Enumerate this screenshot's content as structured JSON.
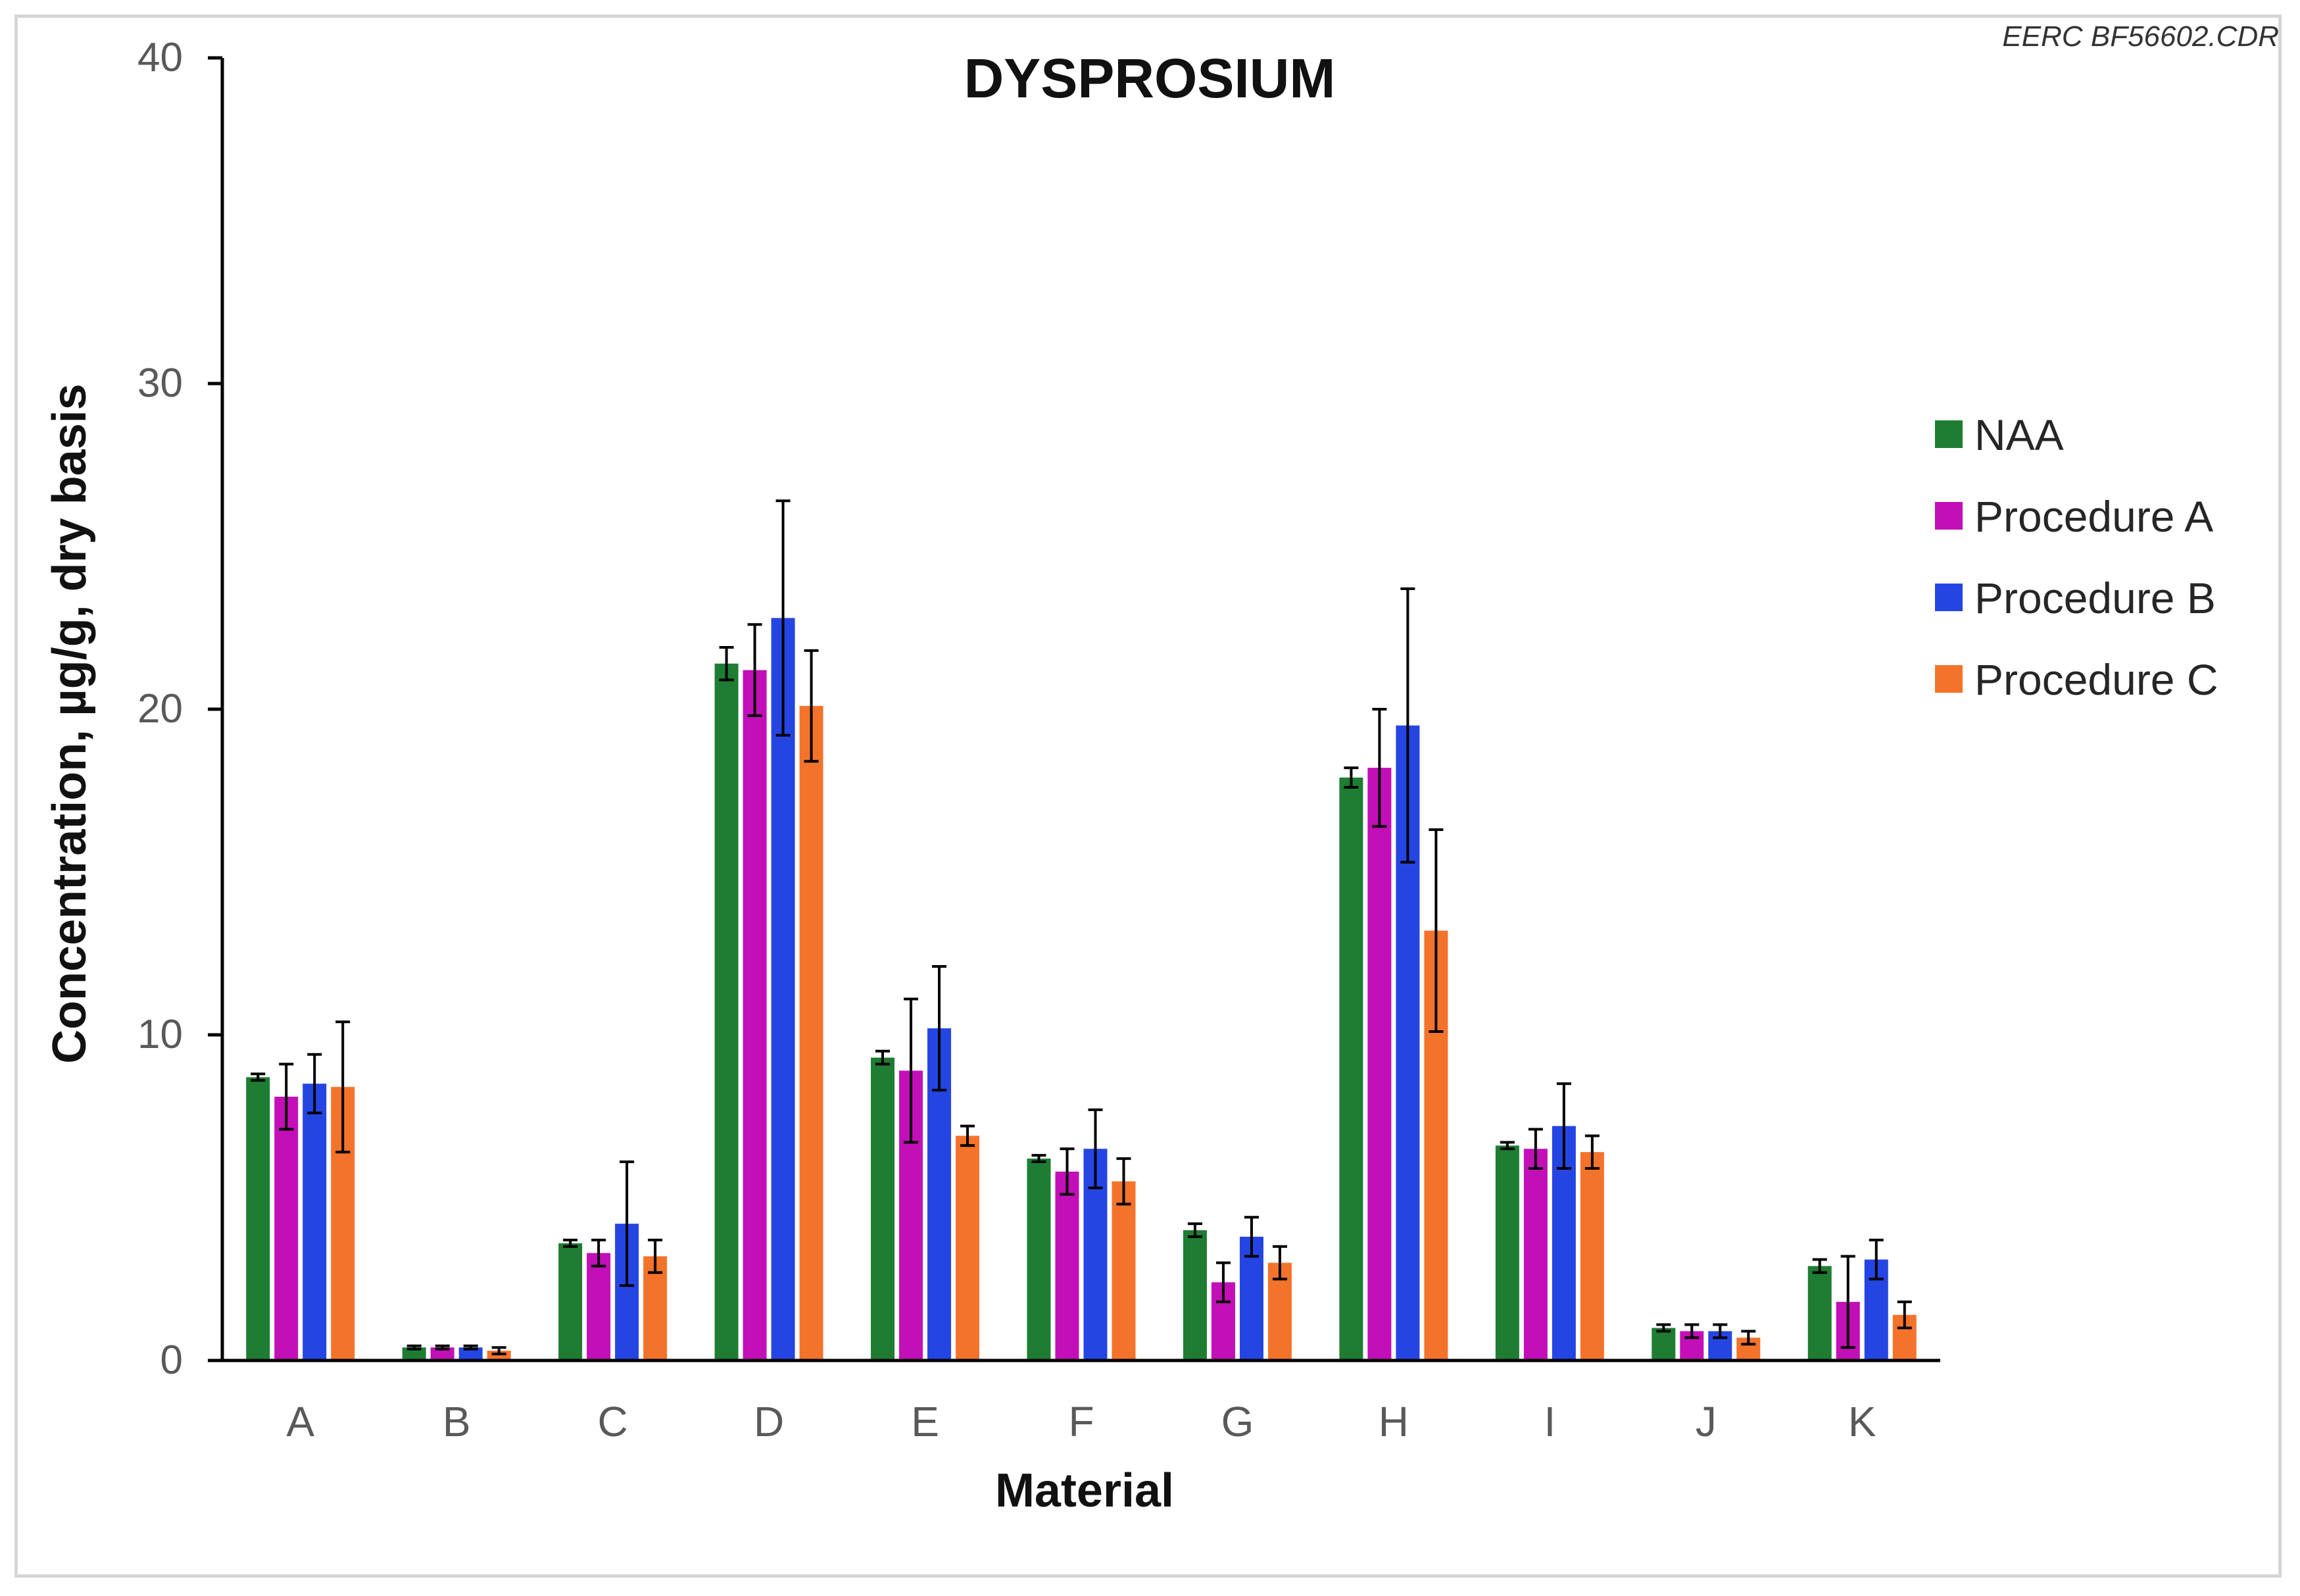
{
  "watermark": "EERC BF56602.CDR",
  "chart_data": {
    "type": "bar",
    "title": "DYSPROSIUM",
    "xlabel": "Material",
    "ylabel": "Concentration, µg/g, dry basis",
    "ylim": [
      0,
      40
    ],
    "yticks": [
      "0",
      "10",
      "20",
      "30",
      "40"
    ],
    "grid": false,
    "legend_position": "right",
    "categories": [
      "A",
      "B",
      "C",
      "D",
      "E",
      "F",
      "G",
      "H",
      "I",
      "J",
      "K"
    ],
    "series": [
      {
        "name": "NAA",
        "color": "#1e7d32",
        "values": [
          8.7,
          0.4,
          3.6,
          21.4,
          9.3,
          6.2,
          4.0,
          17.9,
          6.6,
          1.0,
          2.9
        ],
        "errors": [
          0.1,
          0.05,
          0.1,
          0.5,
          0.2,
          0.1,
          0.2,
          0.3,
          0.1,
          0.1,
          0.2
        ]
      },
      {
        "name": "Procedure A",
        "color": "#c30fb7",
        "values": [
          8.1,
          0.4,
          3.3,
          21.2,
          8.9,
          5.8,
          2.4,
          18.2,
          6.5,
          0.9,
          1.8
        ],
        "errors": [
          1.0,
          0.05,
          0.4,
          1.4,
          2.2,
          0.7,
          0.6,
          1.8,
          0.6,
          0.2,
          1.4
        ]
      },
      {
        "name": "Procedure B",
        "color": "#2545e3",
        "values": [
          8.5,
          0.4,
          4.2,
          22.8,
          10.2,
          6.5,
          3.8,
          19.5,
          7.2,
          0.9,
          3.1
        ],
        "errors": [
          0.9,
          0.05,
          1.9,
          3.6,
          1.9,
          1.2,
          0.6,
          4.2,
          1.3,
          0.2,
          0.6
        ]
      },
      {
        "name": "Procedure C",
        "color": "#f4732b",
        "values": [
          8.4,
          0.3,
          3.2,
          20.1,
          6.9,
          5.5,
          3.0,
          13.2,
          6.4,
          0.7,
          1.4
        ],
        "errors": [
          2.0,
          0.1,
          0.5,
          1.7,
          0.3,
          0.7,
          0.5,
          3.1,
          0.5,
          0.2,
          0.4
        ]
      }
    ]
  }
}
